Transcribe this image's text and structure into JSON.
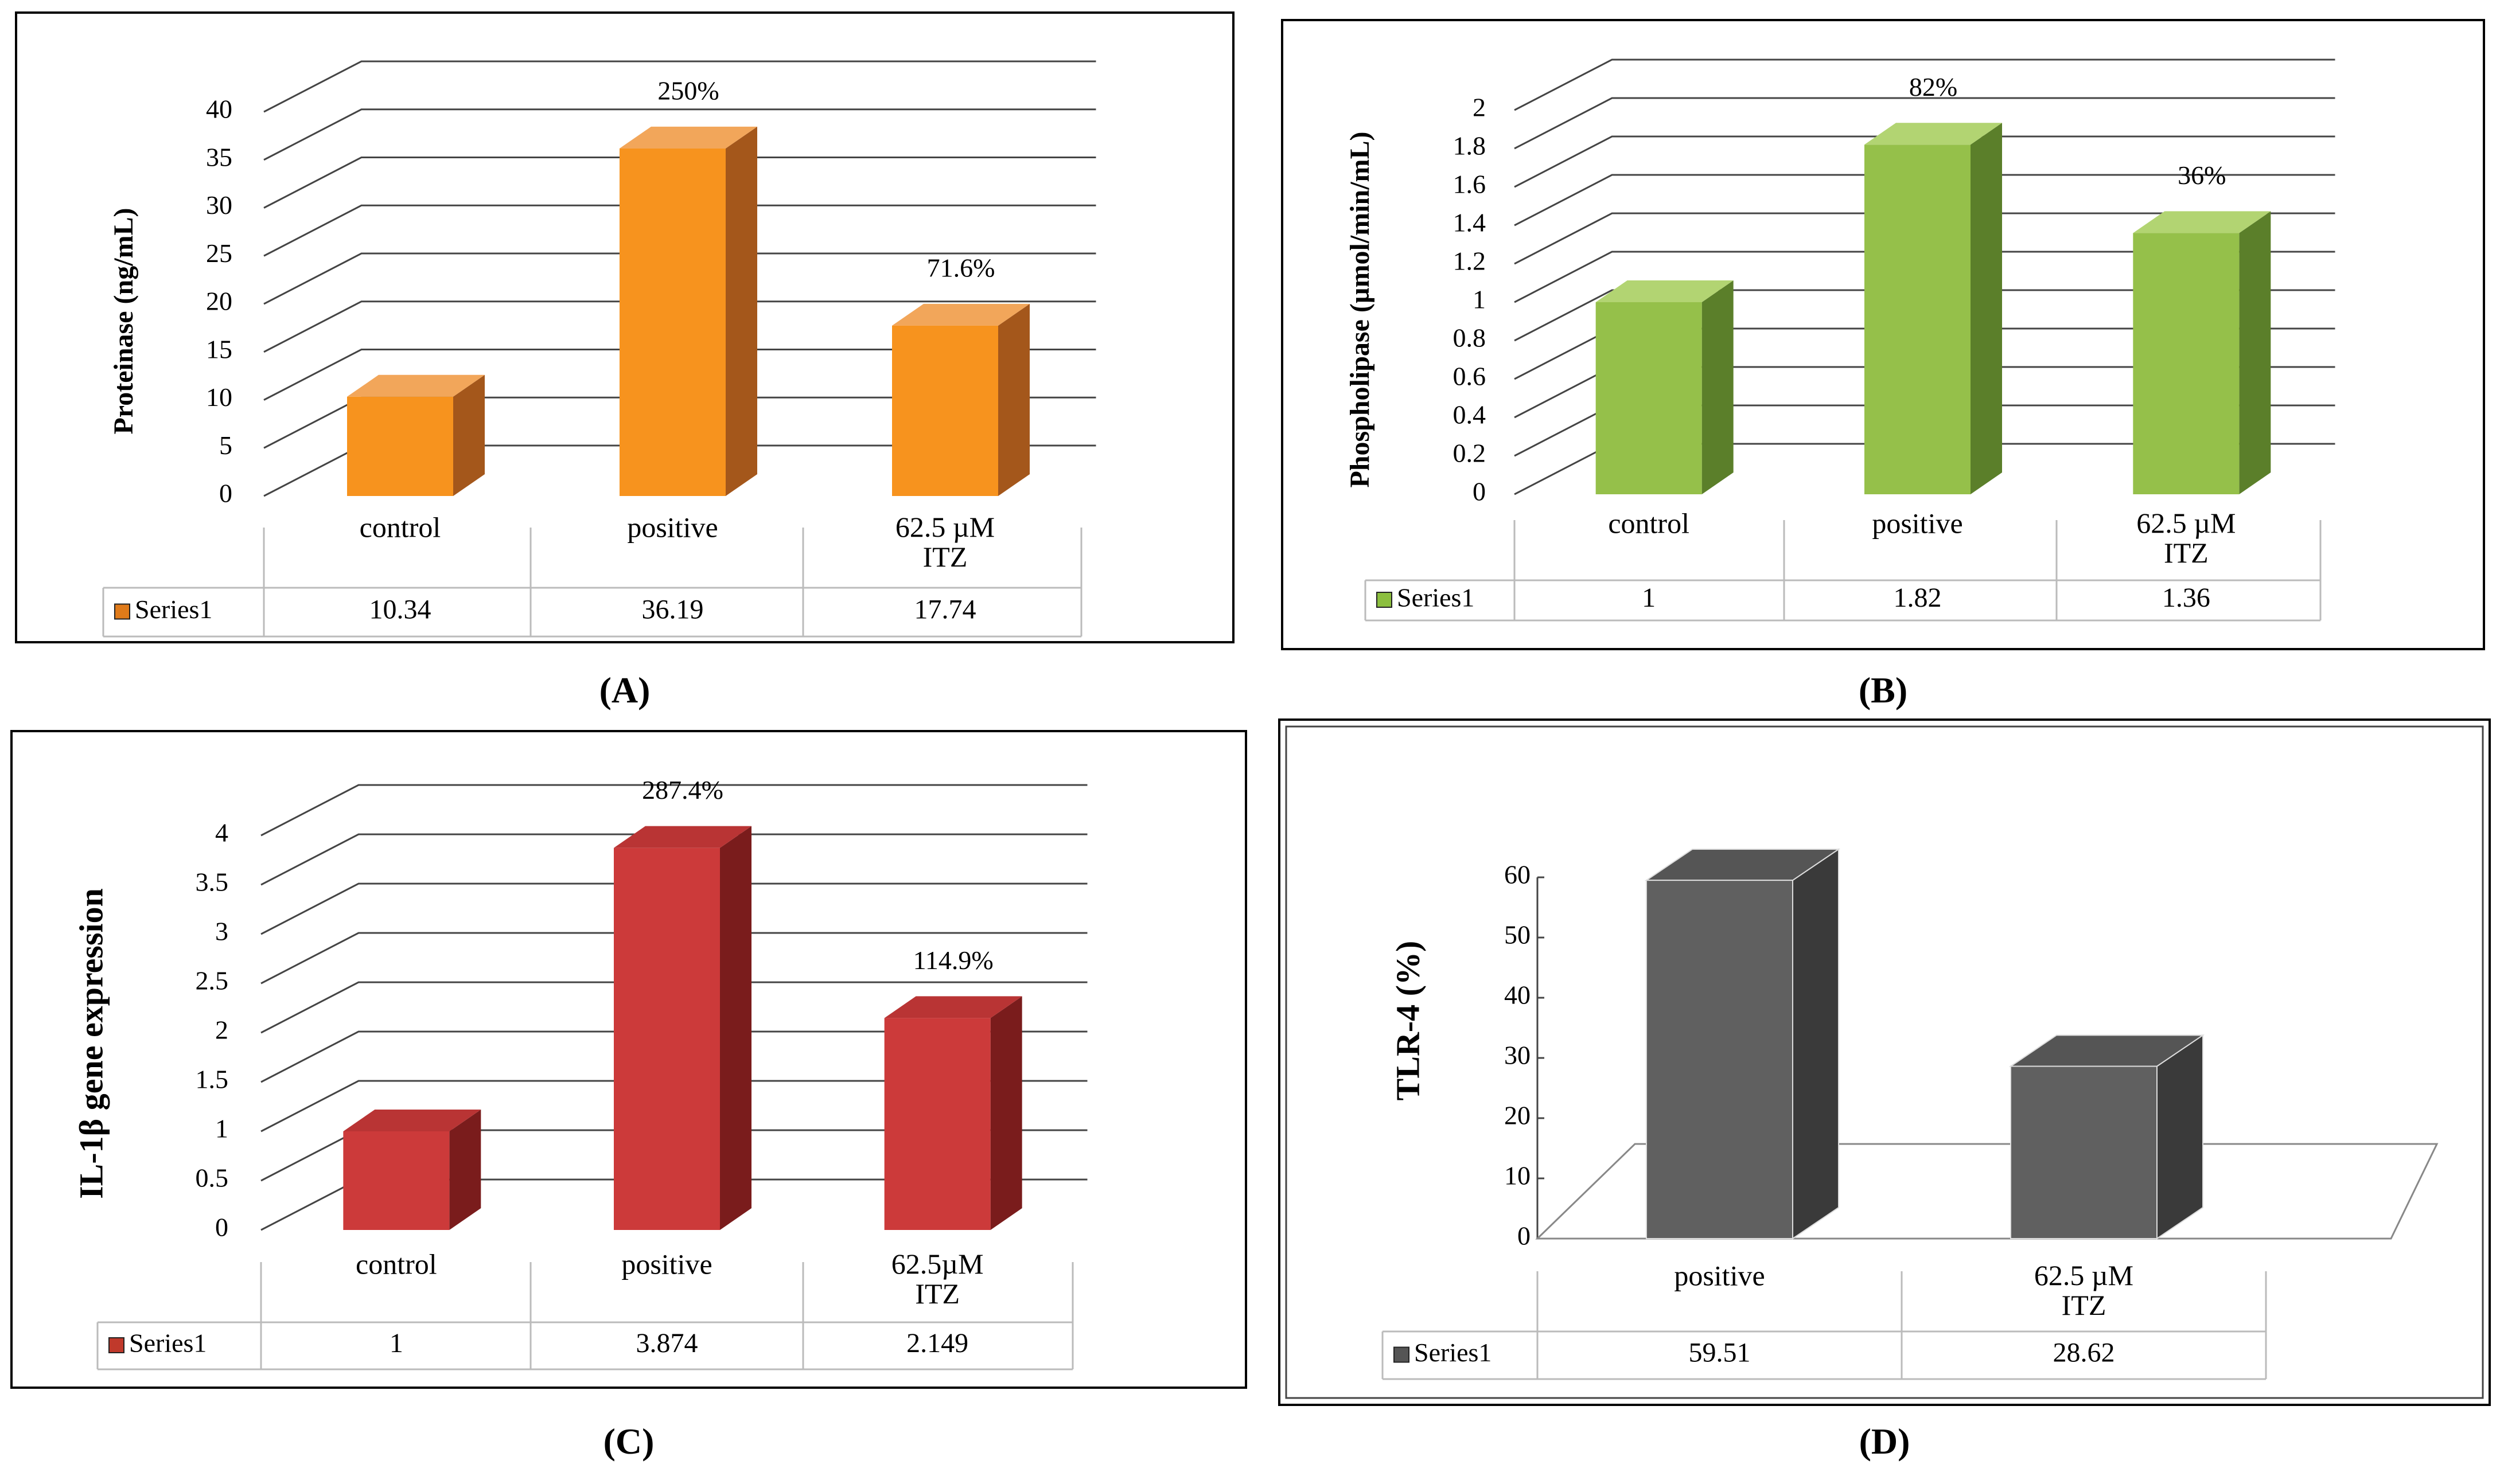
{
  "panels": [
    {
      "letter": "A",
      "ylabel": "Proteinase (ng/mL)",
      "ticks": [
        "0",
        "5",
        "10",
        "15",
        "20",
        "25",
        "30",
        "35",
        "40"
      ],
      "series_name": "Series1",
      "categories": [
        "control",
        "positive",
        "62.5 µM ITZ"
      ],
      "table_values": [
        "10.34",
        "36.19",
        "17.74"
      ],
      "annotations": [
        "",
        "250%",
        "71.6%"
      ],
      "colors": {
        "front": "#f7931e",
        "top": "#f2a65a",
        "side": "#a4571b",
        "legend": "#e07b1a"
      }
    },
    {
      "letter": "B",
      "ylabel": "Phospholipase (µmol/min/mL)",
      "ticks": [
        "0",
        "0.2",
        "0.4",
        "0.6",
        "0.8",
        "1",
        "1.2",
        "1.4",
        "1.6",
        "1.8",
        "2"
      ],
      "series_name": "Series1",
      "categories": [
        "control",
        "positive",
        "62.5 µM ITZ"
      ],
      "table_values": [
        "1",
        "1.82",
        "1.36"
      ],
      "annotations": [
        "",
        "82%",
        "36%"
      ],
      "colors": {
        "front": "#95c04a",
        "top": "#b2d472",
        "side": "#5b7f2a",
        "legend": "#8cbf3f"
      }
    },
    {
      "letter": "C",
      "ylabel": "IL-1β gene expression",
      "ticks": [
        "0",
        "0.5",
        "1",
        "1.5",
        "2",
        "2.5",
        "3",
        "3.5",
        "4"
      ],
      "series_name": "Series1",
      "categories": [
        "control",
        "positive",
        "62.5µM ITZ"
      ],
      "table_values": [
        "1",
        "3.874",
        "2.149"
      ],
      "annotations": [
        "",
        "287.4%",
        "114.9%"
      ],
      "colors": {
        "front": "#cc3a3a",
        "top": "#b93434",
        "side": "#7a1c1c",
        "legend": "#c0392b"
      }
    },
    {
      "letter": "D",
      "ylabel": "TLR-4 (%)",
      "ticks": [
        "0",
        "10",
        "20",
        "30",
        "40",
        "50",
        "60"
      ],
      "series_name": "Series1",
      "categories": [
        "positive",
        "62.5 µM ITZ"
      ],
      "table_values": [
        "59.51",
        "28.62"
      ],
      "annotations": [
        "",
        ""
      ],
      "colors": {
        "front": "#606060",
        "top": "#555555",
        "side": "#3a3a3a",
        "legend": "#555555"
      }
    }
  ],
  "chart_data": [
    {
      "type": "bar",
      "title": "",
      "ylabel": "Proteinase (ng/mL)",
      "categories": [
        "control",
        "positive",
        "62.5 µM ITZ"
      ],
      "series": [
        {
          "name": "Series1",
          "values": [
            10.34,
            36.19,
            17.74
          ]
        }
      ],
      "ylim": [
        0,
        40
      ],
      "annotations": [
        "",
        "250%",
        "71.6%"
      ],
      "grid": true,
      "legend": "data-table"
    },
    {
      "type": "bar",
      "title": "",
      "ylabel": "Phospholipase (µmol/min/mL)",
      "categories": [
        "control",
        "positive",
        "62.5 µM ITZ"
      ],
      "series": [
        {
          "name": "Series1",
          "values": [
            1,
            1.82,
            1.36
          ]
        }
      ],
      "ylim": [
        0,
        2
      ],
      "annotations": [
        "",
        "82%",
        "36%"
      ],
      "grid": true,
      "legend": "data-table"
    },
    {
      "type": "bar",
      "title": "",
      "ylabel": "IL-1β gene expression",
      "categories": [
        "control",
        "positive",
        "62.5µM ITZ"
      ],
      "series": [
        {
          "name": "Series1",
          "values": [
            1,
            3.874,
            2.149
          ]
        }
      ],
      "ylim": [
        0,
        4
      ],
      "annotations": [
        "",
        "287.4%",
        "114.9%"
      ],
      "grid": true,
      "legend": "data-table"
    },
    {
      "type": "bar",
      "title": "",
      "ylabel": "TLR-4 (%)",
      "categories": [
        "positive",
        "62.5 µM ITZ"
      ],
      "series": [
        {
          "name": "Series1",
          "values": [
            59.51,
            28.62
          ]
        }
      ],
      "ylim": [
        0,
        60
      ],
      "grid": false,
      "legend": "data-table"
    }
  ]
}
